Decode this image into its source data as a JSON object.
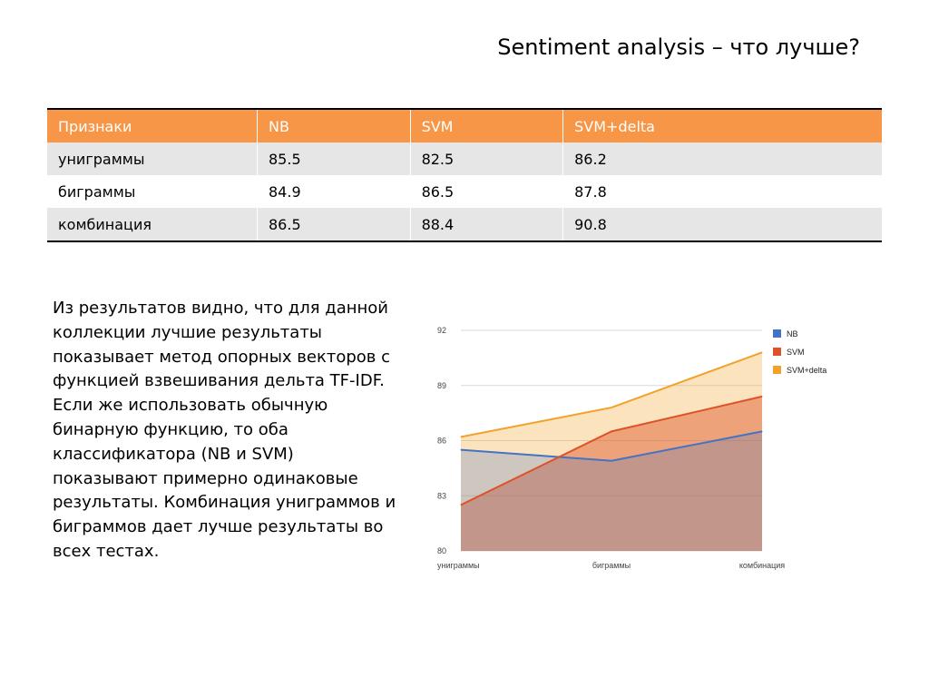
{
  "slide": {
    "title": "Sentiment analysis – что лучше?",
    "paragraph": "Из результатов видно, что для данной коллекции лучшие результаты показывает метод опорных векторов с функцией взвешивания дельта TF-IDF. Если же использовать обычную бинарную функцию, то оба классификатора (NB и SVM) показывают примерно одинаковые результаты. Комбинация униграммов и биграммов дает лучше результаты во всех тестах."
  },
  "table": {
    "headers": [
      "Признаки",
      "NB",
      "SVM",
      "SVM+delta"
    ],
    "rows": [
      [
        "униграммы",
        "85.5",
        "82.5",
        "86.2"
      ],
      [
        "биграммы",
        "84.9",
        "86.5",
        "87.8"
      ],
      [
        "комбинация",
        "86.5",
        "88.4",
        "90.8"
      ]
    ]
  },
  "colors": {
    "table_header": "#f79646",
    "NB": "#4472c4",
    "SVM": "#de5228",
    "SVM+delta": "#f2a129"
  },
  "chart_data": {
    "type": "area",
    "categories": [
      "униграммы",
      "биграммы",
      "комбинация"
    ],
    "series": [
      {
        "name": "NB",
        "values": [
          85.5,
          84.9,
          86.5
        ],
        "color": "#4472c4"
      },
      {
        "name": "SVM",
        "values": [
          82.5,
          86.5,
          88.4
        ],
        "color": "#de5228"
      },
      {
        "name": "SVM+delta",
        "values": [
          86.2,
          87.8,
          90.8
        ],
        "color": "#f2a129"
      }
    ],
    "yticks": [
      80,
      83,
      86,
      89,
      92
    ],
    "ylim": [
      80,
      92
    ],
    "grid": true,
    "legend": "right"
  }
}
